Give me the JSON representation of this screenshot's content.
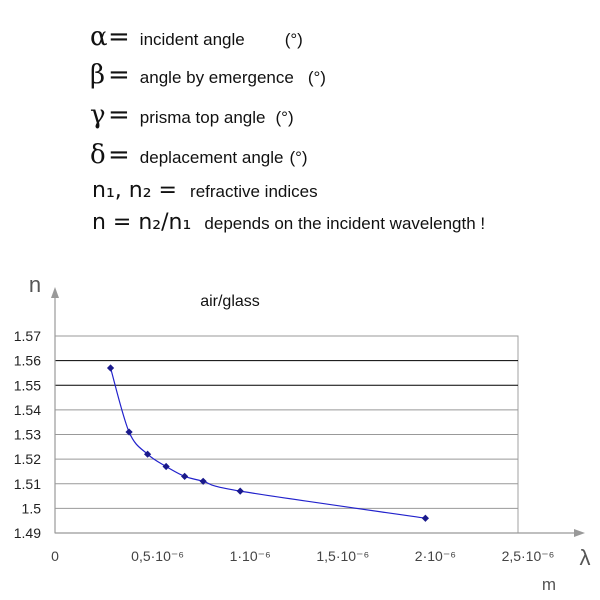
{
  "definitions": [
    {
      "symbol": "α",
      "equals": "=",
      "description": "incident angle",
      "unit": "(°)"
    },
    {
      "symbol": "β",
      "equals": "=",
      "description": "angle by emergence",
      "unit": "(°)"
    },
    {
      "symbol": "γ",
      "equals": "=",
      "description": "prisma top angle",
      "unit": "(°)"
    },
    {
      "symbol": "δ",
      "equals": "=",
      "description": "deplacement angle",
      "unit": "(°)"
    }
  ],
  "indices": {
    "symbols": "n₁, n₂ =",
    "text": "refractive indices"
  },
  "ratio": {
    "formula": "n  = n₂/n₁",
    "text": "depends on the incident wavelength !"
  },
  "chart_data": {
    "type": "line",
    "title": "air/glass",
    "ylabel": "n",
    "xlabel": "λ",
    "xunit": "m",
    "xlim": [
      0,
      2.5e-06
    ],
    "ylim": [
      1.49,
      1.57
    ],
    "x_ticks": [
      "0",
      "0,5·10⁻⁶",
      "1·10⁻⁶",
      "1,5·10⁻⁶",
      "2·10⁻⁶",
      "2,5·10⁻⁶"
    ],
    "y_ticks": [
      "1.49",
      "1.5",
      "1.51",
      "1.52",
      "1.53",
      "1.54",
      "1.55",
      "1.56",
      "1.57"
    ],
    "grid": true,
    "series": [
      {
        "color": "#1a1a8c",
        "x": [
          3e-07,
          4e-07,
          5e-07,
          6e-07,
          7e-07,
          8e-07,
          1e-06,
          2e-06
        ],
        "y": [
          1.557,
          1.531,
          1.522,
          1.517,
          1.513,
          1.511,
          1.507,
          1.496
        ]
      }
    ],
    "line_color": "#2222cc"
  }
}
